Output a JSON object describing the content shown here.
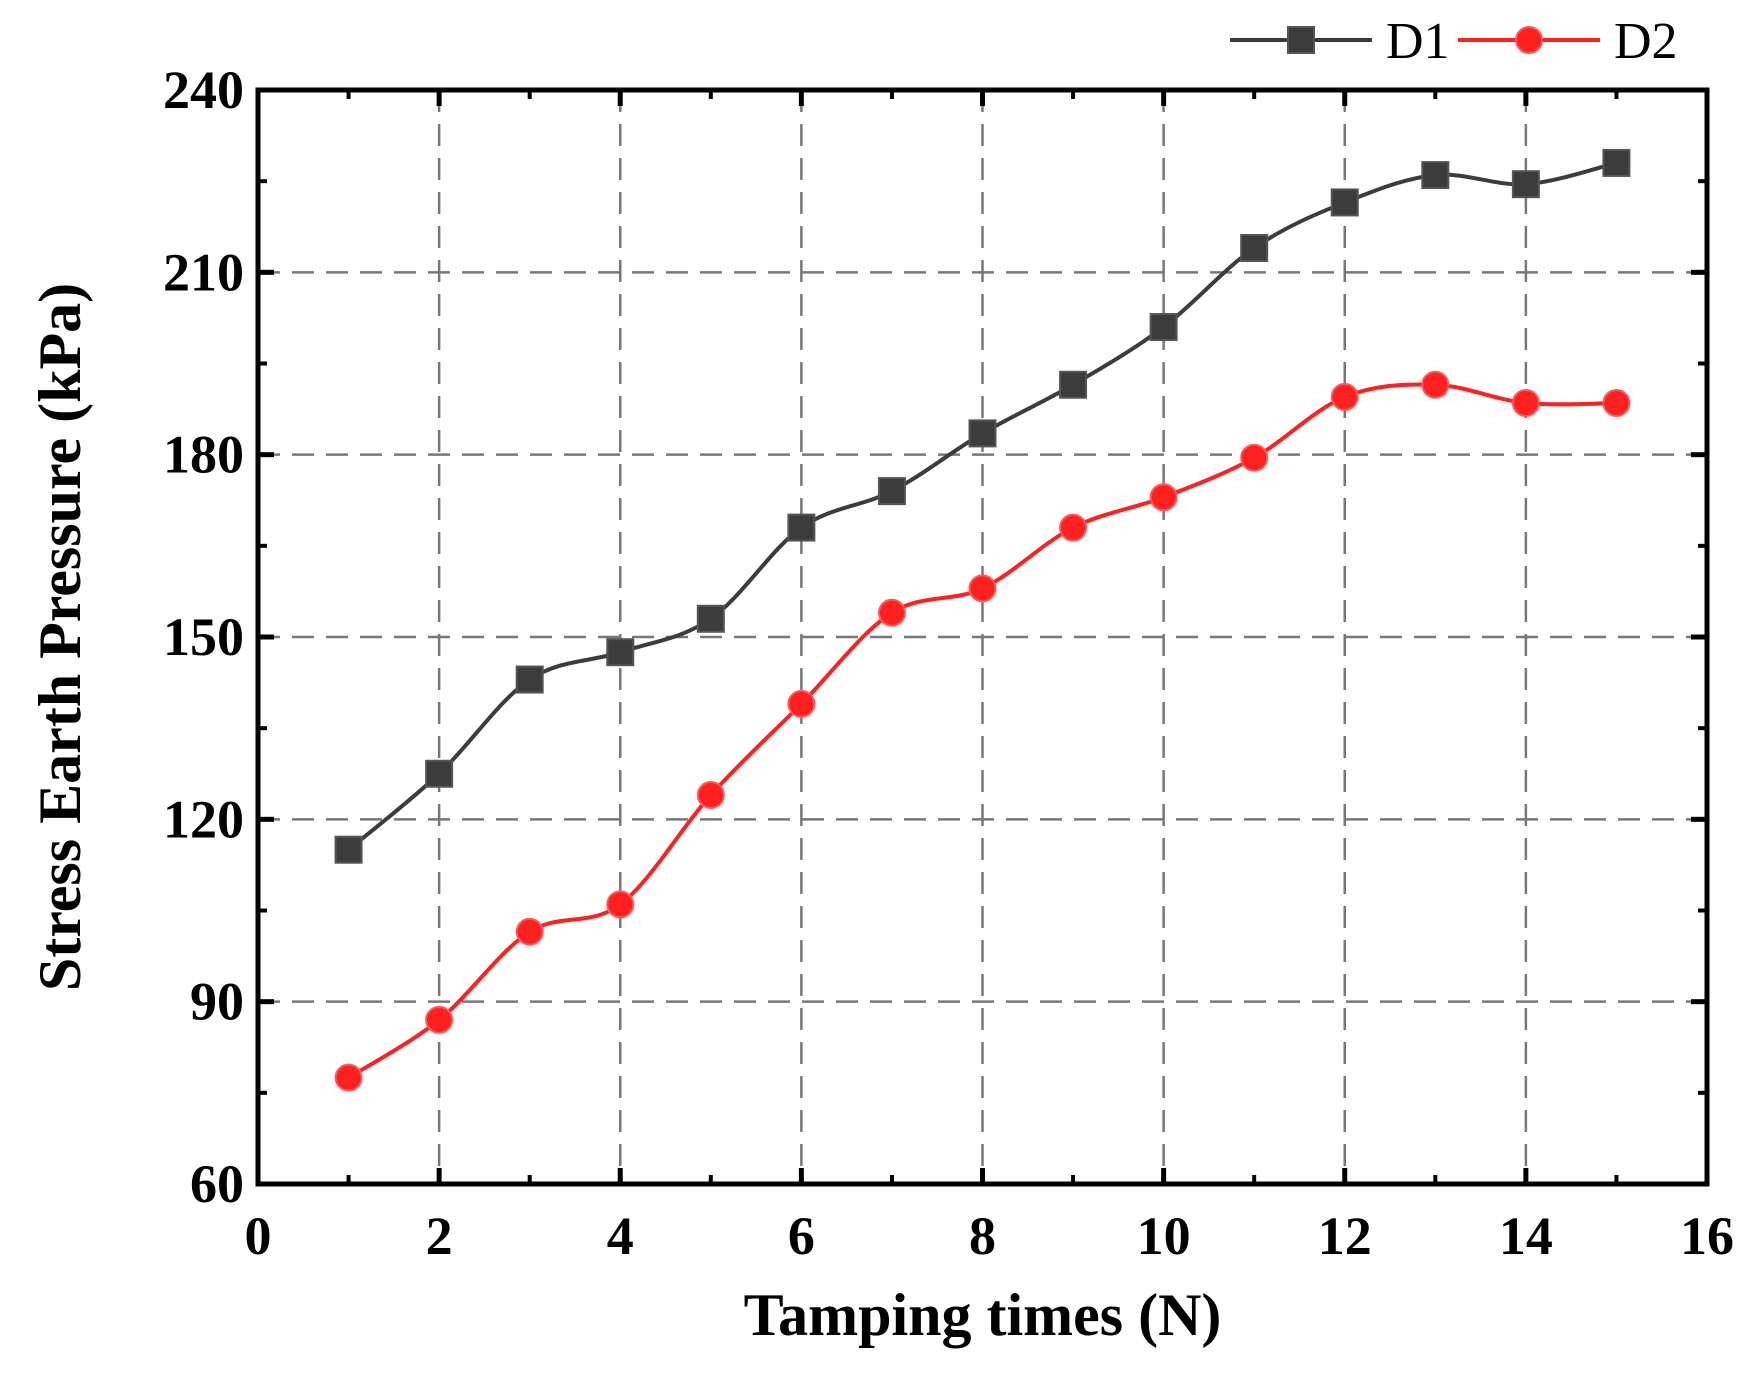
{
  "chart_data": {
    "type": "line",
    "title": "",
    "xlabel": "Tamping times (N)",
    "ylabel": "Stress Earth Pressure (kPa)",
    "xlim": [
      0,
      16
    ],
    "ylim": [
      60,
      240
    ],
    "xticks": [
      0,
      2,
      4,
      6,
      8,
      10,
      12,
      14,
      16
    ],
    "yticks": [
      60,
      90,
      120,
      150,
      180,
      210,
      240
    ],
    "grid": true,
    "legend_position": "top-right-outside",
    "x": [
      1,
      2,
      3,
      4,
      5,
      6,
      7,
      8,
      9,
      10,
      11,
      12,
      13,
      14,
      15
    ],
    "series": [
      {
        "name": "D1",
        "marker": "square",
        "color": "#3c3c3c",
        "values": [
          115,
          127.5,
          143,
          147.5,
          153,
          168,
          174,
          183.5,
          191.5,
          201,
          214,
          221.5,
          226,
          224.5,
          228
        ]
      },
      {
        "name": "D2",
        "marker": "circle",
        "color": "#ff2020",
        "values": [
          77.5,
          87,
          101.5,
          106,
          124,
          139,
          154,
          158,
          168,
          173,
          179.5,
          189.5,
          191.5,
          188.5,
          188.5
        ]
      }
    ]
  }
}
